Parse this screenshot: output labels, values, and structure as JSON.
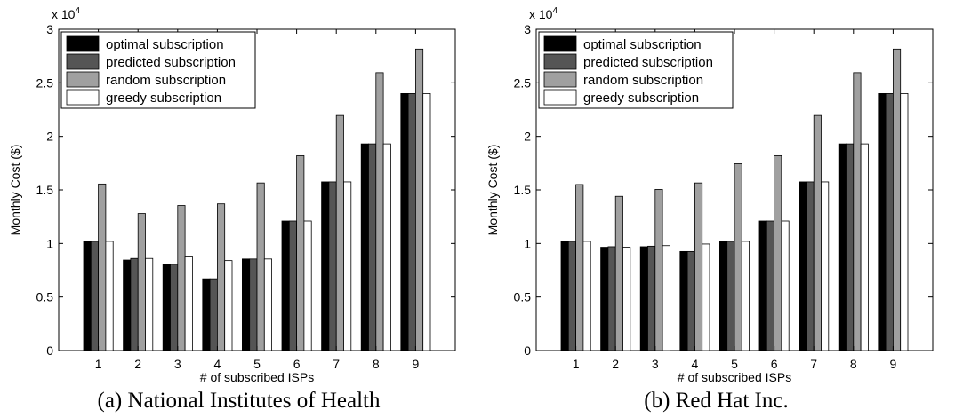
{
  "panels": [
    {
      "caption": "(a) National Institutes of Health",
      "chart_data": {
        "type": "bar",
        "title": "",
        "xlabel": "# of subscribed ISPs",
        "ylabel": "Monthly Cost ($)",
        "y_multiplier_label": "x 10",
        "y_multiplier_exponent": "4",
        "categories": [
          "1",
          "2",
          "3",
          "4",
          "5",
          "6",
          "7",
          "8",
          "9"
        ],
        "yticks": [
          "0",
          "0.5",
          "1",
          "1.5",
          "2",
          "2.5",
          "3"
        ],
        "ylim": [
          0,
          30000
        ],
        "legend_position": "top-left",
        "grid": false,
        "series": [
          {
            "name": "optimal subscription",
            "color": "#000000",
            "values": [
              10200,
              8450,
              8050,
              6700,
              8550,
              12100,
              15750,
              19300,
              24000
            ]
          },
          {
            "name": "predicted subscription",
            "color": "#555555",
            "values": [
              10200,
              8600,
              8050,
              6700,
              8550,
              12100,
              15750,
              19300,
              24000
            ]
          },
          {
            "name": "random subscription",
            "color": "#a0a0a0",
            "values": [
              15550,
              12800,
              13550,
              13700,
              15650,
              18200,
              21950,
              25950,
              28150
            ]
          },
          {
            "name": "greedy subscription",
            "color": "#ffffff",
            "values": [
              10200,
              8600,
              8750,
              8400,
              8550,
              12100,
              15750,
              19300,
              24000
            ]
          }
        ]
      }
    },
    {
      "caption": "(b) Red Hat Inc.",
      "chart_data": {
        "type": "bar",
        "title": "",
        "xlabel": "# of subscribed ISPs",
        "ylabel": "Monthly Cost ($)",
        "y_multiplier_label": "x 10",
        "y_multiplier_exponent": "4",
        "categories": [
          "1",
          "2",
          "3",
          "4",
          "5",
          "6",
          "7",
          "8",
          "9"
        ],
        "yticks": [
          "0",
          "0.5",
          "1",
          "1.5",
          "2",
          "2.5",
          "3"
        ],
        "ylim": [
          0,
          30000
        ],
        "legend_position": "top-left",
        "grid": false,
        "series": [
          {
            "name": "optimal subscription",
            "color": "#000000",
            "values": [
              10200,
              9650,
              9700,
              9250,
              10200,
              12100,
              15750,
              19300,
              24000
            ]
          },
          {
            "name": "predicted subscription",
            "color": "#555555",
            "values": [
              10200,
              9700,
              9750,
              9250,
              10200,
              12100,
              15750,
              19300,
              24000
            ]
          },
          {
            "name": "random subscription",
            "color": "#a0a0a0",
            "values": [
              15500,
              14400,
              15050,
              15650,
              17450,
              18200,
              21950,
              25950,
              28150
            ]
          },
          {
            "name": "greedy subscription",
            "color": "#ffffff",
            "values": [
              10200,
              9650,
              9800,
              9950,
              10200,
              12100,
              15750,
              19300,
              24000
            ]
          }
        ]
      }
    }
  ]
}
